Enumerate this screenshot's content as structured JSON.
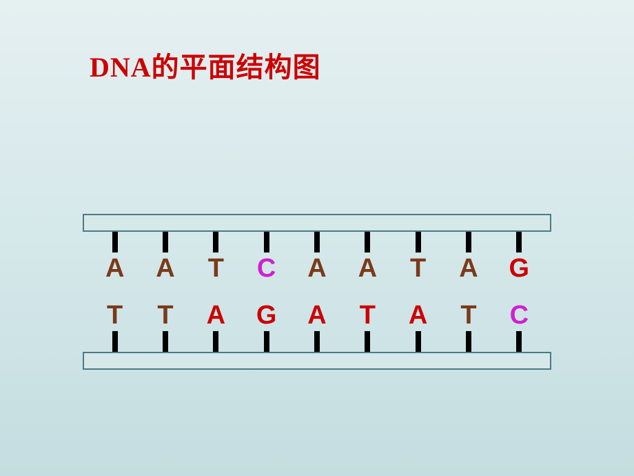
{
  "title": "DNA的平面结构图",
  "diagram": {
    "type": "dna-ladder",
    "backbone_fill": "#d6e8e8",
    "backbone_border": "#4a7a8a",
    "backbone_height": 26,
    "tick_color": "#000000",
    "tick_width": 8,
    "tick_height": 30,
    "base_fontsize": 38,
    "base_colors": {
      "A_brown": "#7a3a1a",
      "T_brown": "#7a3a1a",
      "C_magenta": "#d020d0",
      "G_magenta": "#d020d0",
      "A_red": "#cc0000",
      "G_red": "#cc0000",
      "T_red": "#cc0000"
    },
    "top_strand": [
      {
        "base": "A",
        "color": "#7a3a1a"
      },
      {
        "base": "A",
        "color": "#7a3a1a"
      },
      {
        "base": "T",
        "color": "#7a3a1a"
      },
      {
        "base": "C",
        "color": "#d020d0"
      },
      {
        "base": "A",
        "color": "#7a3a1a"
      },
      {
        "base": "A",
        "color": "#7a3a1a"
      },
      {
        "base": "T",
        "color": "#7a3a1a"
      },
      {
        "base": "A",
        "color": "#7a3a1a"
      },
      {
        "base": "G",
        "color": "#cc0000"
      }
    ],
    "bottom_strand": [
      {
        "base": "T",
        "color": "#7a3a1a"
      },
      {
        "base": "T",
        "color": "#7a3a1a"
      },
      {
        "base": "A",
        "color": "#cc0000"
      },
      {
        "base": "G",
        "color": "#cc0000"
      },
      {
        "base": "A",
        "color": "#cc0000"
      },
      {
        "base": "T",
        "color": "#cc0000"
      },
      {
        "base": "A",
        "color": "#cc0000"
      },
      {
        "base": "T",
        "color": "#7a3a1a"
      },
      {
        "base": "C",
        "color": "#d020d0"
      }
    ]
  }
}
